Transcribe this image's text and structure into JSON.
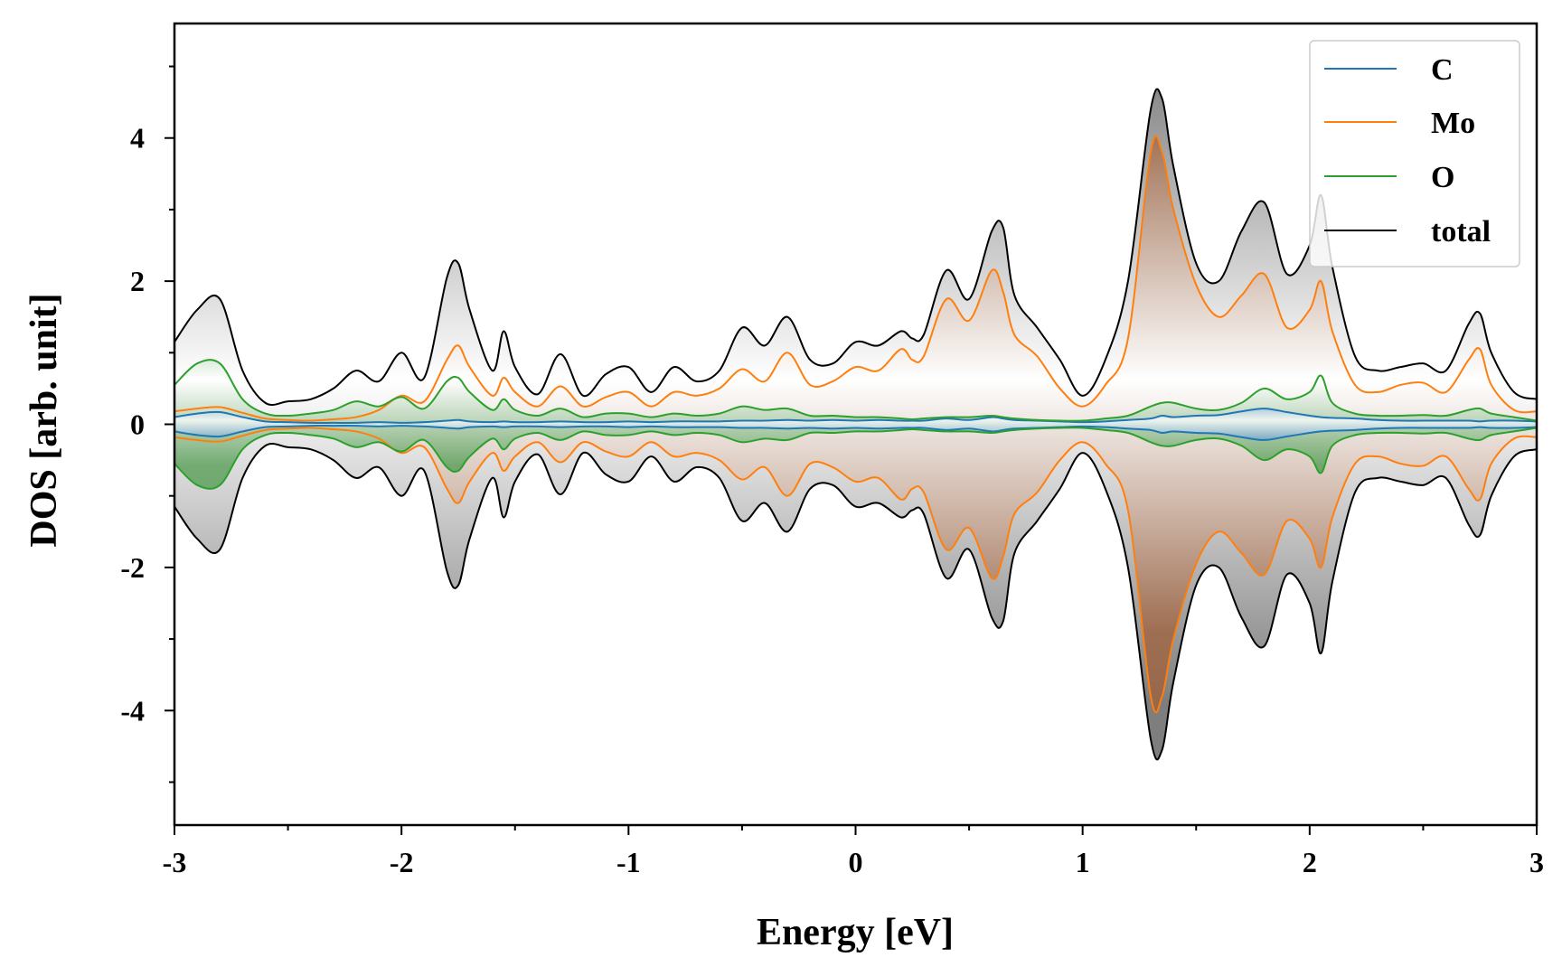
{
  "chart_data": {
    "type": "line",
    "title": "",
    "xlabel": "Energy [eV]",
    "ylabel": "DOS [arb. unit]",
    "xlim": [
      -3,
      3
    ],
    "ylim": [
      -5.6,
      5.6
    ],
    "x_ticks": [
      -3,
      -2,
      -1,
      0,
      1,
      2,
      3
    ],
    "x_tick_labels": [
      "-3",
      "-2",
      "-1",
      "0",
      "1",
      "2",
      "3"
    ],
    "y_ticks": [
      -4,
      -2,
      0,
      2,
      4
    ],
    "y_tick_labels": [
      "-4",
      "-2",
      "0",
      "2",
      "4"
    ],
    "grid": false,
    "legend_position": "top-right",
    "mirrored_negative": true,
    "x": [
      -3.0,
      -2.9,
      -2.8,
      -2.7,
      -2.6,
      -2.5,
      -2.4,
      -2.3,
      -2.2,
      -2.1,
      -2.0,
      -1.9,
      -1.8,
      -1.75,
      -1.7,
      -1.6,
      -1.55,
      -1.5,
      -1.4,
      -1.3,
      -1.2,
      -1.1,
      -1.0,
      -0.9,
      -0.8,
      -0.7,
      -0.6,
      -0.5,
      -0.4,
      -0.3,
      -0.2,
      -0.1,
      0.0,
      0.1,
      0.2,
      0.25,
      0.3,
      0.4,
      0.5,
      0.6,
      0.65,
      0.7,
      0.8,
      0.9,
      1.0,
      1.1,
      1.2,
      1.3,
      1.35,
      1.4,
      1.5,
      1.6,
      1.7,
      1.8,
      1.9,
      2.0,
      2.05,
      2.1,
      2.2,
      2.3,
      2.4,
      2.5,
      2.6,
      2.7,
      2.75,
      2.8,
      2.9,
      3.0
    ],
    "series": [
      {
        "name": "C",
        "color": "#1f77b4",
        "values": [
          0.1,
          0.15,
          0.17,
          0.1,
          0.04,
          0.03,
          0.02,
          0.02,
          0.02,
          0.03,
          0.02,
          0.03,
          0.05,
          0.06,
          0.04,
          0.03,
          0.04,
          0.03,
          0.03,
          0.04,
          0.03,
          0.03,
          0.04,
          0.03,
          0.04,
          0.04,
          0.04,
          0.05,
          0.05,
          0.06,
          0.05,
          0.06,
          0.05,
          0.06,
          0.05,
          0.05,
          0.05,
          0.08,
          0.06,
          0.1,
          0.08,
          0.06,
          0.05,
          0.04,
          0.03,
          0.04,
          0.06,
          0.08,
          0.12,
          0.1,
          0.12,
          0.13,
          0.18,
          0.22,
          0.17,
          0.12,
          0.1,
          0.09,
          0.08,
          0.06,
          0.05,
          0.05,
          0.05,
          0.05,
          0.04,
          0.05,
          0.05,
          0.04
        ]
      },
      {
        "name": "Mo",
        "color": "#ff7f0e",
        "values": [
          0.18,
          0.22,
          0.24,
          0.16,
          0.08,
          0.06,
          0.05,
          0.07,
          0.1,
          0.2,
          0.4,
          0.32,
          0.9,
          1.1,
          0.8,
          0.4,
          0.65,
          0.45,
          0.25,
          0.53,
          0.25,
          0.38,
          0.45,
          0.25,
          0.45,
          0.4,
          0.5,
          0.77,
          0.6,
          1.0,
          0.55,
          0.6,
          0.8,
          0.75,
          1.05,
          0.9,
          0.95,
          1.75,
          1.45,
          2.15,
          1.85,
          1.25,
          0.95,
          0.5,
          0.25,
          0.55,
          1.2,
          3.8,
          3.8,
          3.0,
          1.95,
          1.5,
          1.8,
          2.1,
          1.35,
          1.6,
          2.0,
          1.3,
          0.55,
          0.45,
          0.55,
          0.58,
          0.45,
          0.9,
          1.05,
          0.55,
          0.2,
          0.18
        ]
      },
      {
        "name": "O",
        "color": "#2ca02c",
        "values": [
          0.55,
          0.85,
          0.85,
          0.35,
          0.15,
          0.12,
          0.15,
          0.2,
          0.32,
          0.25,
          0.38,
          0.22,
          0.6,
          0.65,
          0.45,
          0.2,
          0.35,
          0.2,
          0.12,
          0.22,
          0.1,
          0.15,
          0.15,
          0.1,
          0.15,
          0.12,
          0.15,
          0.25,
          0.2,
          0.22,
          0.12,
          0.12,
          0.1,
          0.1,
          0.08,
          0.07,
          0.08,
          0.1,
          0.1,
          0.12,
          0.1,
          0.08,
          0.06,
          0.05,
          0.05,
          0.08,
          0.12,
          0.25,
          0.3,
          0.3,
          0.22,
          0.2,
          0.3,
          0.5,
          0.35,
          0.45,
          0.68,
          0.3,
          0.15,
          0.12,
          0.12,
          0.13,
          0.12,
          0.2,
          0.22,
          0.15,
          0.1,
          0.05
        ]
      },
      {
        "name": "total",
        "color": "#000000",
        "values": [
          1.15,
          1.6,
          1.75,
          0.75,
          0.3,
          0.32,
          0.35,
          0.5,
          0.75,
          0.6,
          1.0,
          0.65,
          2.05,
          2.25,
          1.6,
          0.75,
          1.3,
          0.8,
          0.42,
          0.98,
          0.4,
          0.7,
          0.8,
          0.45,
          0.8,
          0.6,
          0.75,
          1.35,
          1.1,
          1.5,
          0.9,
          0.85,
          1.15,
          1.1,
          1.3,
          1.2,
          1.25,
          2.15,
          1.75,
          2.7,
          2.75,
          1.8,
          1.35,
          0.9,
          0.4,
          0.9,
          2.0,
          4.4,
          4.55,
          3.6,
          2.25,
          2.0,
          2.7,
          3.1,
          2.1,
          2.5,
          3.2,
          2.2,
          0.95,
          0.75,
          0.8,
          0.85,
          0.75,
          1.4,
          1.55,
          1.0,
          0.45,
          0.35
        ]
      }
    ]
  }
}
